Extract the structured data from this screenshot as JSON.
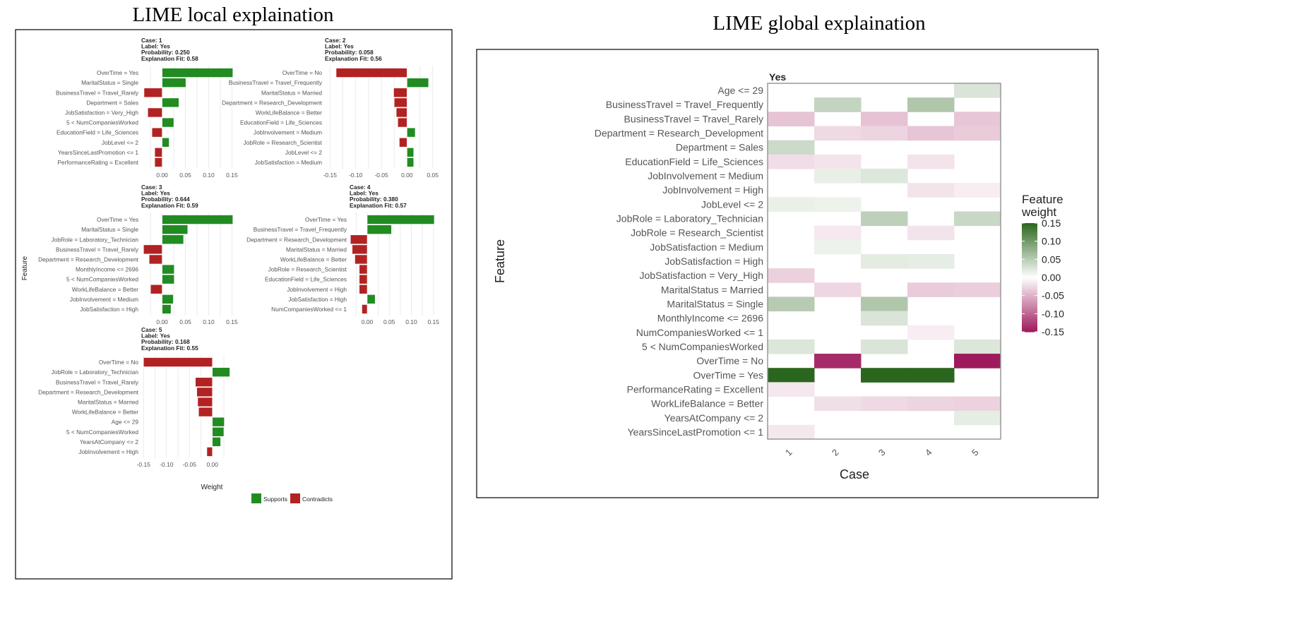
{
  "titles": {
    "local": "LIME local explaination",
    "global": "LIME global explaination"
  },
  "colors": {
    "supports": "#228b22",
    "contradicts": "#b22222",
    "heat_neg": "#9e1a5c",
    "heat_pos": "#2a661d"
  },
  "chart_data": [
    {
      "type": "bar",
      "title": "LIME local explaination",
      "xlabel": "Weight",
      "ylabel": "Feature",
      "legend": {
        "position": "bottom",
        "entries": [
          "Supports",
          "Contradicts"
        ]
      },
      "facets": [
        {
          "header": [
            "Case: 1",
            "Label: Yes",
            "Probability: 0.250",
            "Explanation Fit: 0.58"
          ],
          "xlim": [
            -0.045,
            0.16
          ],
          "ticks": [
            0.0,
            0.05,
            0.1,
            0.15
          ],
          "tick_labels": [
            "0.00",
            "0.05",
            "0.10",
            "0.15"
          ],
          "features": [
            "OverTime = Yes",
            "MaritalStatus = Single",
            "BusinessTravel = Travel_Rarely",
            "Department = Sales",
            "JobSatisfaction = Very_High",
            "5 < NumCompaniesWorked",
            "EducationField = Life_Sciences",
            "JobLevel <= 2",
            "YearsSinceLastPromotion <= 1",
            "PerformanceRating = Excellent"
          ],
          "values": [
            0.152,
            0.051,
            -0.039,
            0.036,
            -0.031,
            0.025,
            -0.022,
            0.015,
            -0.016,
            -0.016
          ]
        },
        {
          "header": [
            "Case: 2",
            "Label: Yes",
            "Probability: 0.058",
            "Explanation Fit: 0.56"
          ],
          "xlim": [
            -0.16,
            0.06
          ],
          "ticks": [
            -0.15,
            -0.1,
            -0.05,
            0.0,
            0.05
          ],
          "tick_labels": [
            "-0.15",
            "-0.10",
            "-0.05",
            "0.00",
            "0.05"
          ],
          "features": [
            "OverTime = No",
            "BusinessTravel = Travel_Frequently",
            "MaritalStatus = Married",
            "Department = Research_Development",
            "WorkLifeBalance = Better",
            "EducationField = Life_Sciences",
            "JobInvolvement = Medium",
            "JobRole = Research_Scientist",
            "JobLevel <= 2",
            "JobSatisfaction = Medium"
          ],
          "values": [
            -0.138,
            0.042,
            -0.026,
            -0.025,
            -0.021,
            -0.018,
            0.016,
            -0.015,
            0.013,
            0.013
          ]
        },
        {
          "header": [
            "Case: 3",
            "Label: Yes",
            "Probability: 0.644",
            "Explanation Fit: 0.59"
          ],
          "xlim": [
            -0.045,
            0.16
          ],
          "ticks": [
            0.0,
            0.05,
            0.1,
            0.15
          ],
          "tick_labels": [
            "0.00",
            "0.05",
            "0.10",
            "0.15"
          ],
          "features": [
            "OverTime = Yes",
            "MaritalStatus = Single",
            "JobRole = Laboratory_Technician",
            "BusinessTravel = Travel_Rarely",
            "Department = Research_Development",
            "MonthlyIncome <= 2696",
            "5 < NumCompaniesWorked",
            "WorkLifeBalance = Better",
            "JobInvolvement = Medium",
            "JobSatisfaction = High"
          ],
          "values": [
            0.152,
            0.055,
            0.046,
            -0.04,
            -0.028,
            0.026,
            0.026,
            -0.025,
            0.024,
            0.019
          ]
        },
        {
          "header": [
            "Case: 4",
            "Label: Yes",
            "Probability: 0.380",
            "Explanation Fit: 0.57"
          ],
          "xlim": [
            -0.04,
            0.16
          ],
          "ticks": [
            0.0,
            0.05,
            0.1,
            0.15
          ],
          "tick_labels": [
            "0.00",
            "0.05",
            "0.10",
            "0.15"
          ],
          "features": [
            "OverTime = Yes",
            "BusinessTravel = Travel_Frequently",
            "Department = Research_Development",
            "MaritalStatus = Married",
            "WorkLifeBalance = Better",
            "JobRole = Research_Scientist",
            "EducationField = Life_Sciences",
            "JobInvolvement = High",
            "JobSatisfaction = High",
            "NumCompaniesWorked <= 1"
          ],
          "values": [
            0.152,
            0.055,
            -0.038,
            -0.034,
            -0.028,
            -0.018,
            -0.018,
            -0.018,
            0.018,
            -0.012
          ]
        },
        {
          "header": [
            "Case: 5",
            "Label: Yes",
            "Probability: 0.168",
            "Explanation Fit: 0.55"
          ],
          "xlim": [
            -0.155,
            0.045
          ],
          "ticks": [
            -0.15,
            -0.1,
            -0.05,
            0.0
          ],
          "tick_labels": [
            "-0.15",
            "-0.10",
            "-0.05",
            "0.00"
          ],
          "features": [
            "OverTime = No",
            "JobRole = Laboratory_Technician",
            "BusinessTravel = Travel_Rarely",
            "Department = Research_Development",
            "MaritalStatus = Married",
            "WorkLifeBalance = Better",
            "Age <= 29",
            "5 < NumCompaniesWorked",
            "YearsAtCompany <= 2",
            "JobInvolvement = High"
          ],
          "values": [
            -0.15,
            0.038,
            -0.037,
            -0.034,
            -0.032,
            -0.03,
            0.026,
            0.025,
            0.018,
            -0.012
          ]
        }
      ]
    },
    {
      "type": "heatmap",
      "title": "LIME global explaination",
      "strip_label": "Yes",
      "xlabel": "Case",
      "ylabel": "Feature",
      "x": [
        "1",
        "2",
        "3",
        "4",
        "5"
      ],
      "y": [
        "Age <= 29",
        "BusinessTravel = Travel_Frequently",
        "BusinessTravel = Travel_Rarely",
        "Department = Research_Development",
        "Department = Sales",
        "EducationField = Life_Sciences",
        "JobInvolvement = Medium",
        "JobInvolvement = High",
        "JobLevel <= 2",
        "JobRole = Laboratory_Technician",
        "JobRole = Research_Scientist",
        "JobSatisfaction = Medium",
        "JobSatisfaction = High",
        "JobSatisfaction = Very_High",
        "MaritalStatus = Married",
        "MaritalStatus = Single",
        "MonthlyIncome <= 2696",
        "NumCompaniesWorked <= 1",
        "5 < NumCompaniesWorked",
        "OverTime = No",
        "OverTime = Yes",
        "PerformanceRating = Excellent",
        "WorkLifeBalance = Better",
        "YearsAtCompany <= 2",
        "YearsSinceLastPromotion <= 1"
      ],
      "legend": {
        "title": "Feature weight",
        "position": "right",
        "range": [
          -0.15,
          0.15
        ],
        "ticks": [
          "0.15",
          "0.10",
          "0.05",
          "0.00",
          "-0.05",
          "-0.10",
          "-0.15"
        ]
      }
    }
  ]
}
